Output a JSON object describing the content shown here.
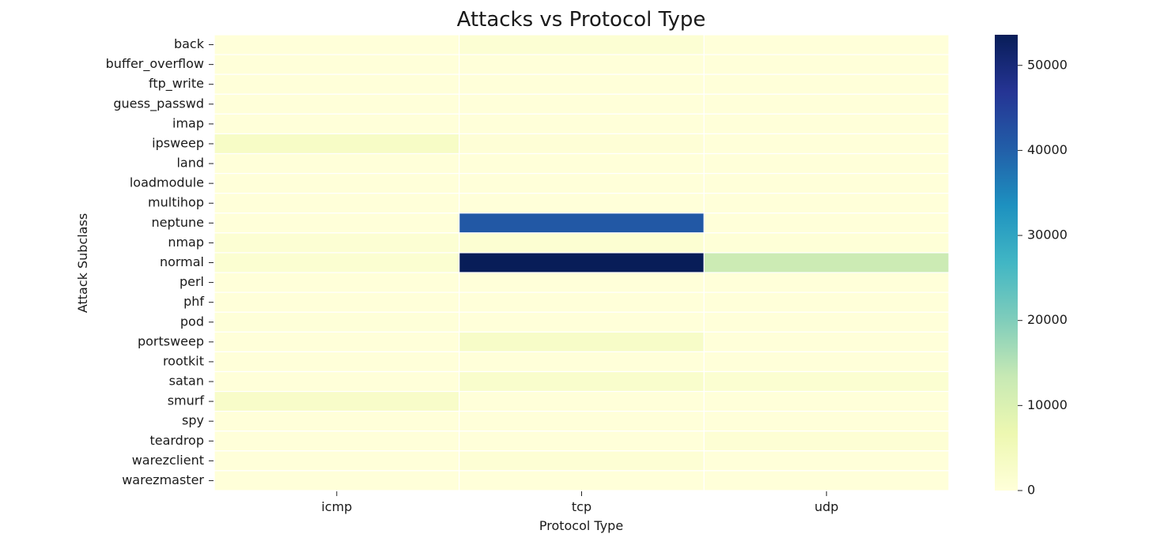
{
  "chart_data": {
    "type": "heatmap",
    "title": "Attacks vs Protocol Type",
    "xlabel": "Protocol Type",
    "ylabel": "Attack Subclass",
    "x_categories": [
      "icmp",
      "tcp",
      "udp"
    ],
    "y_categories": [
      "back",
      "buffer_overflow",
      "ftp_write",
      "guess_passwd",
      "imap",
      "ipsweep",
      "land",
      "loadmodule",
      "multihop",
      "neptune",
      "nmap",
      "normal",
      "perl",
      "phf",
      "pod",
      "portsweep",
      "rootkit",
      "satan",
      "smurf",
      "spy",
      "teardrop",
      "warezclient",
      "warezmaster"
    ],
    "values": [
      [
        0,
        956,
        0
      ],
      [
        0,
        30,
        0
      ],
      [
        0,
        8,
        0
      ],
      [
        0,
        53,
        0
      ],
      [
        0,
        11,
        0
      ],
      [
        3117,
        482,
        0
      ],
      [
        0,
        18,
        0
      ],
      [
        0,
        9,
        0
      ],
      [
        0,
        7,
        0
      ],
      [
        0,
        41214,
        0
      ],
      [
        981,
        1133,
        379
      ],
      [
        1309,
        53600,
        12434
      ],
      [
        0,
        3,
        0
      ],
      [
        0,
        4,
        0
      ],
      [
        201,
        0,
        0
      ],
      [
        5,
        2926,
        0
      ],
      [
        0,
        7,
        3
      ],
      [
        32,
        2184,
        1417
      ],
      [
        2646,
        0,
        0
      ],
      [
        0,
        2,
        0
      ],
      [
        0,
        0,
        892
      ],
      [
        0,
        890,
        0
      ],
      [
        0,
        20,
        0
      ]
    ],
    "colorbar": {
      "min": 0,
      "max": 53600,
      "ticks": [
        0,
        10000,
        20000,
        30000,
        40000,
        50000
      ],
      "colormap": "YlGnBu"
    },
    "grid": false,
    "cell_border_color": "#ffffff"
  }
}
